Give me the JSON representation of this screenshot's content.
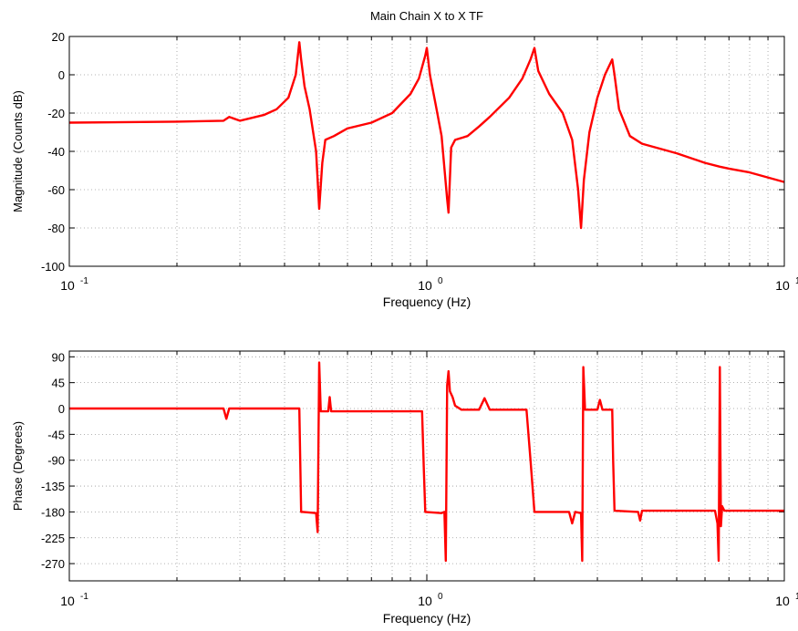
{
  "chart_data": [
    {
      "type": "line",
      "title": "Main Chain X to X TF",
      "xlabel": "Frequency (Hz)",
      "ylabel": "Magnitude (Counts dB)",
      "xscale": "log",
      "xlim": [
        0.1,
        10
      ],
      "ylim": [
        -100,
        20
      ],
      "grid": true,
      "x_tick_labels": [
        {
          "base": "10",
          "exp": "-1"
        },
        {
          "base": "10",
          "exp": "0"
        },
        {
          "base": "10",
          "exp": "1"
        }
      ],
      "y_ticks": [
        20,
        0,
        -20,
        -40,
        -60,
        -80,
        -100
      ],
      "series_color": "#ff0000",
      "series": [
        {
          "x": [
            0.1,
            0.2,
            0.27,
            0.28,
            0.3,
            0.35,
            0.38,
            0.41,
            0.43,
            0.44,
            0.445,
            0.455,
            0.47,
            0.49,
            0.5,
            0.51,
            0.52,
            0.55,
            0.6,
            0.7,
            0.8,
            0.9,
            0.95,
            0.99,
            1.0,
            1.02,
            1.06,
            1.1,
            1.14,
            1.15,
            1.17,
            1.2,
            1.3,
            1.4,
            1.5,
            1.7,
            1.85,
            1.95,
            2.0,
            2.05,
            2.2,
            2.4,
            2.55,
            2.65,
            2.7,
            2.75,
            2.85,
            3.0,
            3.15,
            3.3,
            3.35,
            3.45,
            3.7,
            4.0,
            5.0,
            6.0,
            6.6,
            7.0,
            8.0,
            10.0
          ],
          "values": [
            -25,
            -24.5,
            -24,
            -22,
            -24,
            -21,
            -18,
            -12,
            0,
            17,
            8,
            -6,
            -18,
            -40,
            -70,
            -46,
            -34,
            -32,
            -28,
            -25,
            -20,
            -10,
            -2,
            10,
            14,
            0,
            -16,
            -32,
            -65,
            -72,
            -38,
            -34,
            -32,
            -27,
            -22,
            -12,
            -2,
            8,
            14,
            2,
            -10,
            -20,
            -34,
            -60,
            -80,
            -55,
            -30,
            -12,
            0,
            8,
            0,
            -18,
            -32,
            -36,
            -41,
            -46,
            -48,
            -49,
            -51,
            -56
          ]
        }
      ]
    },
    {
      "type": "line",
      "title": "",
      "xlabel": "Frequency (Hz)",
      "ylabel": "Phase (Degrees)",
      "xscale": "log",
      "xlim": [
        0.1,
        10
      ],
      "ylim": [
        -300,
        100
      ],
      "grid": true,
      "x_tick_labels": [
        {
          "base": "10",
          "exp": "-1"
        },
        {
          "base": "10",
          "exp": "0"
        },
        {
          "base": "10",
          "exp": "1"
        }
      ],
      "y_ticks": [
        90,
        45,
        0,
        -45,
        -90,
        -135,
        -180,
        -225,
        -270
      ],
      "series_color": "#ff0000",
      "series": [
        {
          "x": [
            0.1,
            0.27,
            0.275,
            0.28,
            0.44,
            0.445,
            0.45,
            0.49,
            0.495,
            0.5,
            0.505,
            0.51,
            0.53,
            0.535,
            0.54,
            0.97,
            0.98,
            0.99,
            1.1,
            1.12,
            1.13,
            1.14,
            1.15,
            1.16,
            1.18,
            1.2,
            1.25,
            1.4,
            1.45,
            1.5,
            1.9,
            1.95,
            2.0,
            2.5,
            2.55,
            2.6,
            2.7,
            2.72,
            2.74,
            2.77,
            2.8,
            3.0,
            3.05,
            3.1,
            3.3,
            3.32,
            3.35,
            3.9,
            3.95,
            4.0,
            6.4,
            6.5,
            6.55,
            6.6,
            6.65,
            6.7,
            6.8,
            10.0
          ],
          "values": [
            0,
            0,
            -18,
            0,
            0,
            -180,
            -180,
            -182,
            -215,
            80,
            -5,
            -5,
            -5,
            20,
            -5,
            -5,
            -100,
            -180,
            -182,
            -180,
            -265,
            40,
            65,
            30,
            20,
            5,
            -2,
            -2,
            18,
            -2,
            -2,
            -90,
            -180,
            -180,
            -200,
            -180,
            -182,
            -265,
            72,
            -2,
            -2,
            -2,
            15,
            -2,
            -2,
            -90,
            -178,
            -180,
            -195,
            -178,
            -178,
            -200,
            -265,
            72,
            -205,
            -170,
            -178,
            -178
          ]
        }
      ]
    }
  ]
}
